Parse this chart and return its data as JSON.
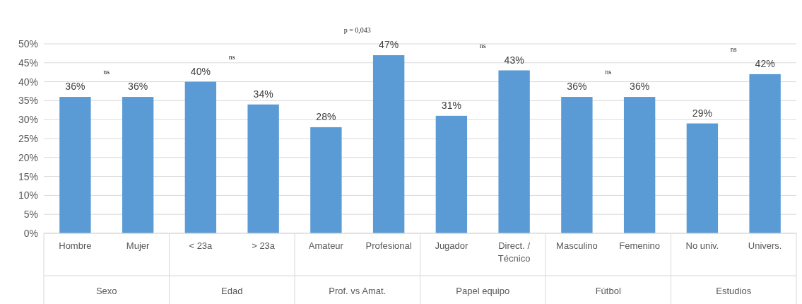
{
  "chart_data": {
    "type": "bar",
    "categories": [
      "Hombre",
      "Mujer",
      "< 23a",
      "> 23a",
      "Amateur",
      "Profesional",
      "Jugador",
      "Direct. / Técnico",
      "Masculino",
      "Femenino",
      "No univ.",
      "Univers."
    ],
    "values": [
      36,
      36,
      40,
      34,
      28,
      47,
      31,
      43,
      36,
      36,
      29,
      42
    ],
    "color": "#5b9bd5",
    "value_labels": [
      "36%",
      "36%",
      "40%",
      "34%",
      "28%",
      "47%",
      "31%",
      "43%",
      "36%",
      "36%",
      "29%",
      "42%"
    ],
    "ylim": [
      0,
      50
    ],
    "yticks": [
      {
        "value": 0,
        "label": "0%"
      },
      {
        "value": 5,
        "label": "5%"
      },
      {
        "value": 10,
        "label": "10%"
      },
      {
        "value": 15,
        "label": "15%"
      },
      {
        "value": 20,
        "label": "20%"
      },
      {
        "value": 25,
        "label": "25%"
      },
      {
        "value": 30,
        "label": "30%"
      },
      {
        "value": 35,
        "label": "35%"
      },
      {
        "value": 40,
        "label": "40%"
      },
      {
        "value": 45,
        "label": "45%"
      },
      {
        "value": 50,
        "label": "50%"
      }
    ],
    "grid": "y",
    "annotations": [
      "Sexo",
      "Edad",
      "Prof. vs Amat.",
      "Papel equipo",
      "Fútbol",
      "Estudios",
      "ns",
      "ns",
      "p = 0,043",
      "ns",
      "ns",
      "ns"
    ]
  }
}
